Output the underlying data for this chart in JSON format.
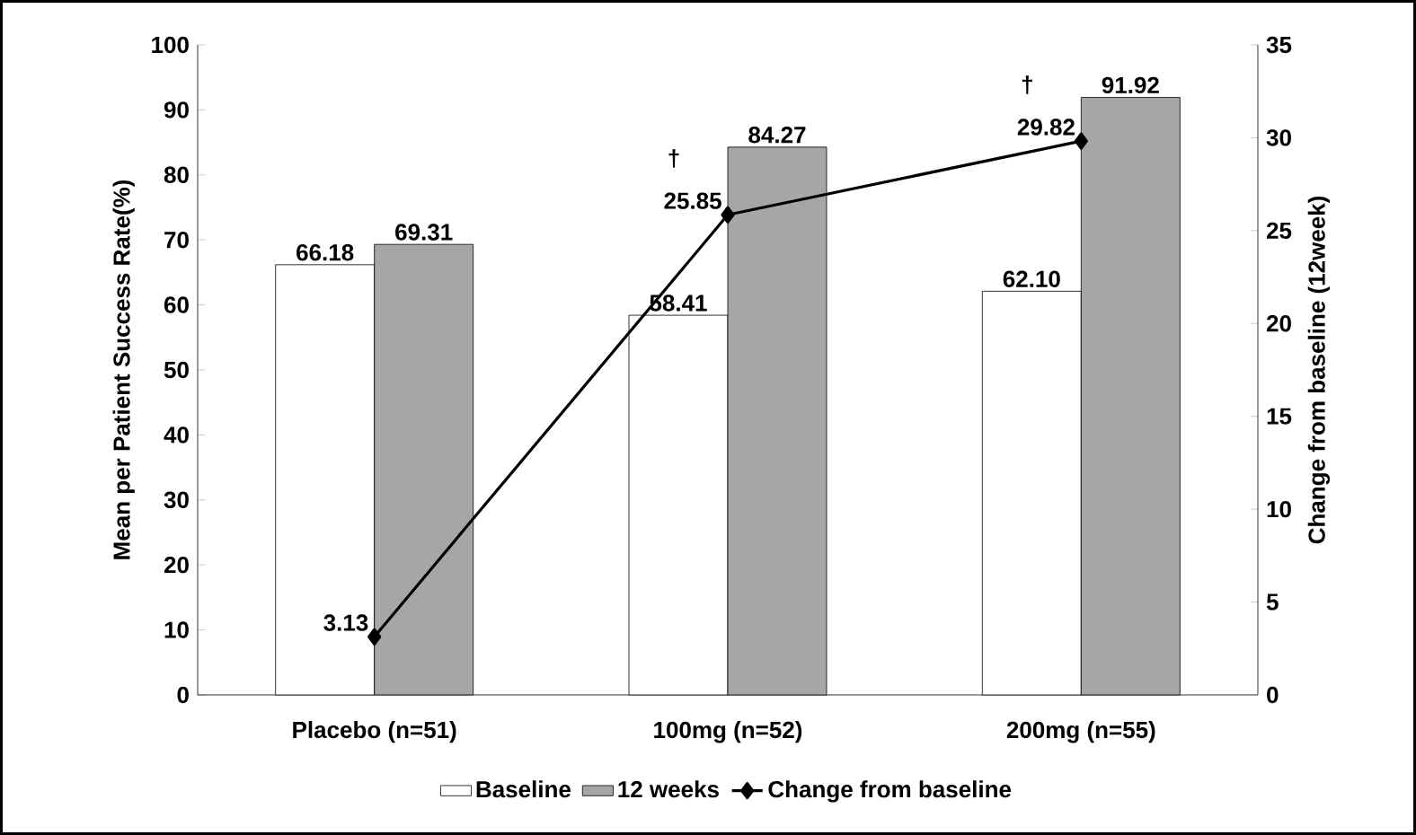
{
  "chart_data": {
    "type": "bar",
    "ylabel": "Mean per Patient Success Rate(%)",
    "y2label": "Change from baseline (12week)",
    "categories": [
      "Placebo (n=51)",
      "100mg (n=52)",
      "200mg (n=55)"
    ],
    "series": [
      {
        "name": "Baseline",
        "color": "#ffffff",
        "values": [
          66.18,
          58.41,
          62.1
        ],
        "value_labels": [
          "66.18",
          "58.41",
          "62.10"
        ]
      },
      {
        "name": "12 weeks",
        "color": "#a6a6a6",
        "values": [
          69.31,
          84.27,
          91.92
        ],
        "value_labels": [
          "69.31",
          "84.27",
          "91.92"
        ]
      },
      {
        "name": "Change from baseline",
        "type": "line",
        "axis": "y2",
        "color": "#000000",
        "marker": "diamond",
        "values": [
          3.13,
          25.85,
          29.82
        ],
        "value_labels": [
          "3.13",
          "25.85",
          "29.82"
        ]
      }
    ],
    "ylim": [
      0,
      100
    ],
    "yticks": [
      0,
      10,
      20,
      30,
      40,
      50,
      60,
      70,
      80,
      90,
      100
    ],
    "y2lim": [
      0,
      35
    ],
    "y2ticks": [
      0,
      5,
      10,
      15,
      20,
      25,
      30,
      35
    ],
    "grid": false,
    "legend": "bottom",
    "annotations": [
      "†",
      "†"
    ]
  }
}
